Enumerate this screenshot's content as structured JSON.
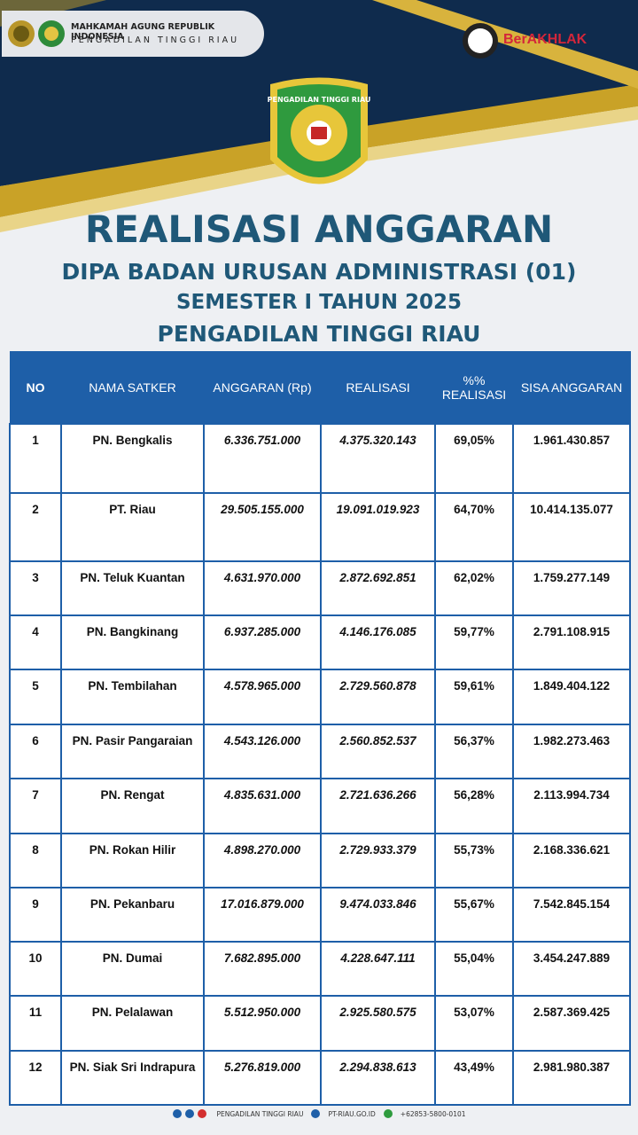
{
  "header": {
    "org_line1": "MAHKAMAH AGUNG REPUBLIK INDONESIA",
    "org_line2": "PENGADILAN TINGGI RIAU",
    "brand": "BerAKHLAK",
    "emblem_text": "PENGADILAN TINGGI RIAU"
  },
  "title": "REALISASI ANGGARAN",
  "subtitle1": "DIPA BADAN URUSAN ADMINISTRASI (01)",
  "subtitle2": "SEMESTER I TAHUN 2025",
  "subtitle3": "PENGADILAN TINGGI RIAU",
  "table": {
    "columns": [
      "NO",
      "NAMA SATKER",
      "ANGGARAN (Rp)",
      "REALISASI",
      "%% REALISASI",
      "SISA ANGGARAN"
    ],
    "rows": [
      [
        "1",
        "PN. Bengkalis",
        "6.336.751.000",
        "4.375.320.143",
        "69,05%",
        "1.961.430.857"
      ],
      [
        "2",
        "PT. Riau",
        "29.505.155.000",
        "19.091.019.923",
        "64,70%",
        "10.414.135.077"
      ],
      [
        "3",
        "PN. Teluk Kuantan",
        "4.631.970.000",
        "2.872.692.851",
        "62,02%",
        "1.759.277.149"
      ],
      [
        "4",
        "PN. Bangkinang",
        "6.937.285.000",
        "4.146.176.085",
        "59,77%",
        "2.791.108.915"
      ],
      [
        "5",
        "PN. Tembilahan",
        "4.578.965.000",
        "2.729.560.878",
        "59,61%",
        "1.849.404.122"
      ],
      [
        "6",
        "PN. Pasir Pangaraian",
        "4.543.126.000",
        "2.560.852.537",
        "56,37%",
        "1.982.273.463"
      ],
      [
        "7",
        "PN. Rengat",
        "4.835.631.000",
        "2.721.636.266",
        "56,28%",
        "2.113.994.734"
      ],
      [
        "8",
        "PN. Rokan Hilir",
        "4.898.270.000",
        "2.729.933.379",
        "55,73%",
        "2.168.336.621"
      ],
      [
        "9",
        "PN. Pekanbaru",
        "17.016.879.000",
        "9.474.033.846",
        "55,67%",
        "7.542.845.154"
      ],
      [
        "10",
        "PN. Dumai",
        "7.682.895.000",
        "4.228.647.111",
        "55,04%",
        "3.454.247.889"
      ],
      [
        "11",
        "PN. Pelalawan",
        "5.512.950.000",
        "2.925.580.575",
        "53,07%",
        "2.587.369.425"
      ],
      [
        "12",
        "PN. Siak Sri Indrapura",
        "5.276.819.000",
        "2.294.838.613",
        "43,49%",
        "2.981.980.387"
      ]
    ]
  },
  "footer": {
    "social": "PENGADILAN TINGGI RIAU",
    "website": "PT-RIAU.GO.ID",
    "phone": "+62853-5800-0101"
  }
}
